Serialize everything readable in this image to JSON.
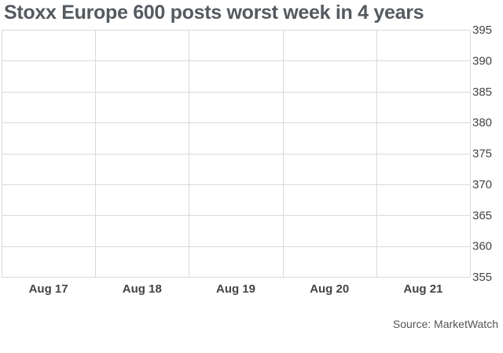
{
  "chart_data": {
    "type": "line",
    "title": "Stoxx Europe 600 posts worst week in 4 years",
    "categories": [
      "Aug 17",
      "Aug 18",
      "Aug 19",
      "Aug 20",
      "Aug 21"
    ],
    "series": [],
    "xlabel": "",
    "ylabel": "",
    "ylim": [
      355,
      395
    ],
    "yticks": [
      395,
      390,
      385,
      380,
      375,
      370,
      365,
      360,
      355
    ],
    "grid": true,
    "axis_position": "right",
    "source": "Source: MarketWatch"
  },
  "colors": {
    "grid": "#d9d9d9",
    "title": "#555a60",
    "text": "#444444"
  }
}
